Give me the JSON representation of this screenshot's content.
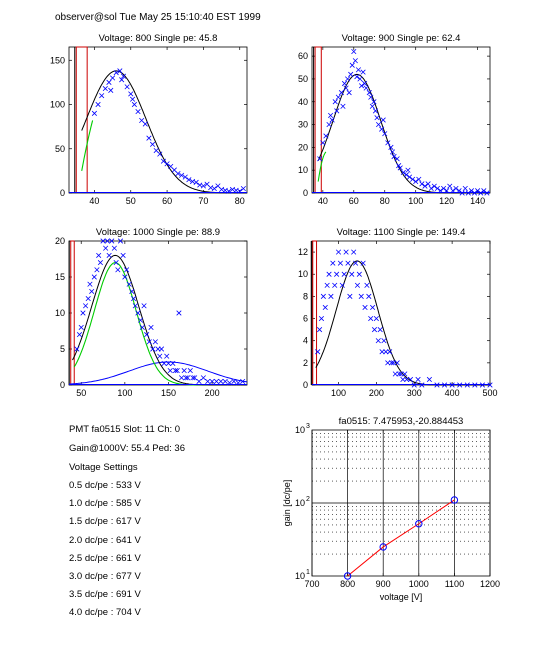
{
  "header": "observer@sol  Tue May 25 15:10:40 EST 1999",
  "info": {
    "line1": "PMT fa0515 Slot: 11 Ch: 0",
    "line2": "Gain@1000V: 55.4 Ped: 36",
    "heading": "Voltage Settings",
    "settings": [
      "0.5 dc/pe : 533 V",
      "1.0 dc/pe : 585 V",
      "1.5 dc/pe : 617 V",
      "2.0 dc/pe : 641 V",
      "2.5 dc/pe : 661 V",
      "3.0 dc/pe : 677 V",
      "3.5 dc/pe : 691 V",
      "4.0 dc/pe : 704 V"
    ]
  },
  "colors": {
    "data": "#0000ff",
    "fit": "#000000",
    "pedestal": "#cc0000",
    "component": "#00cc00",
    "gainLine": "#ff0000"
  },
  "chart_data": [
    {
      "type": "scatter",
      "title": "Voltage: 800 Single pe: 45.8",
      "xlim": [
        33,
        82
      ],
      "ylim": [
        0,
        165
      ],
      "xticks": [
        40,
        50,
        60,
        70,
        80
      ],
      "yticks": [
        0,
        50,
        100,
        150
      ],
      "pedestal": {
        "x1": 35,
        "x2": 38,
        "h": 165
      },
      "fit": {
        "mu": 46,
        "sigma": 8.2,
        "amp": 138,
        "x0": 36.5
      },
      "green": {
        "x0": 36.5,
        "x1": 39.5,
        "y0": 25,
        "y1": 82
      },
      "blue_points": [
        [
          40,
          90
        ],
        [
          41,
          100
        ],
        [
          42,
          110
        ],
        [
          43,
          118
        ],
        [
          44,
          125
        ],
        [
          44.5,
          116
        ],
        [
          45,
          130
        ],
        [
          46,
          136
        ],
        [
          47,
          138
        ],
        [
          47.5,
          128
        ],
        [
          48,
          132
        ],
        [
          49,
          120
        ],
        [
          50,
          112
        ],
        [
          50.5,
          106
        ],
        [
          51,
          100
        ],
        [
          52,
          92
        ],
        [
          53,
          82
        ],
        [
          54,
          78
        ],
        [
          55,
          62
        ],
        [
          56,
          55
        ],
        [
          57,
          48
        ],
        [
          58,
          44
        ],
        [
          59,
          36
        ],
        [
          60,
          33
        ],
        [
          61,
          30
        ],
        [
          62,
          26
        ],
        [
          63,
          22
        ],
        [
          64,
          20
        ],
        [
          65,
          18
        ],
        [
          66,
          15
        ],
        [
          67,
          13
        ],
        [
          68,
          12
        ],
        [
          69,
          9
        ],
        [
          70,
          8
        ],
        [
          71,
          10
        ],
        [
          72,
          6
        ],
        [
          73,
          5
        ],
        [
          74,
          8
        ],
        [
          75,
          4
        ],
        [
          76,
          3
        ],
        [
          77,
          2
        ],
        [
          78,
          4
        ],
        [
          79,
          3
        ],
        [
          80,
          2
        ],
        [
          81,
          5
        ]
      ]
    },
    {
      "type": "scatter",
      "title": "Voltage: 900 Single pe: 62.4",
      "xlim": [
        33,
        148
      ],
      "ylim": [
        0,
        64
      ],
      "xticks": [
        40,
        60,
        80,
        100,
        120,
        140
      ],
      "yticks": [
        0,
        10,
        20,
        30,
        40,
        50,
        60
      ],
      "pedestal": {
        "x1": 35,
        "x2": 39,
        "h": 64
      },
      "fit": {
        "mu": 62,
        "sigma": 15.5,
        "amp": 52,
        "x0": 37
      },
      "green": {
        "x0": 37,
        "x1": 42,
        "y0": 5,
        "y1": 18
      },
      "blue_points": [
        [
          38,
          15
        ],
        [
          40,
          22
        ],
        [
          42,
          25
        ],
        [
          44,
          30
        ],
        [
          45,
          34
        ],
        [
          46,
          32
        ],
        [
          48,
          40
        ],
        [
          49,
          36
        ],
        [
          50,
          42
        ],
        [
          52,
          44
        ],
        [
          53,
          38
        ],
        [
          54,
          48
        ],
        [
          55,
          46
        ],
        [
          56,
          50
        ],
        [
          57,
          44
        ],
        [
          58,
          52
        ],
        [
          59,
          56
        ],
        [
          60,
          62
        ],
        [
          61,
          58
        ],
        [
          62,
          51
        ],
        [
          63,
          54
        ],
        [
          64,
          50
        ],
        [
          65,
          47
        ],
        [
          66,
          53
        ],
        [
          67,
          48
        ],
        [
          68,
          46
        ],
        [
          70,
          44
        ],
        [
          71,
          42
        ],
        [
          72,
          38
        ],
        [
          73,
          40
        ],
        [
          74,
          36
        ],
        [
          75,
          33
        ],
        [
          76,
          30
        ],
        [
          78,
          28
        ],
        [
          79,
          32
        ],
        [
          80,
          26
        ],
        [
          82,
          22
        ],
        [
          84,
          20
        ],
        [
          85,
          18
        ],
        [
          86,
          16
        ],
        [
          88,
          15
        ],
        [
          89,
          12
        ],
        [
          90,
          11
        ],
        [
          92,
          9
        ],
        [
          94,
          8
        ],
        [
          95,
          10
        ],
        [
          96,
          7
        ],
        [
          98,
          6
        ],
        [
          100,
          5
        ],
        [
          102,
          6
        ],
        [
          104,
          4
        ],
        [
          106,
          3
        ],
        [
          108,
          4
        ],
        [
          110,
          2
        ],
        [
          112,
          3
        ],
        [
          114,
          2
        ],
        [
          116,
          1
        ],
        [
          118,
          2
        ],
        [
          120,
          1
        ],
        [
          122,
          3
        ],
        [
          124,
          1
        ],
        [
          126,
          2
        ],
        [
          128,
          1
        ],
        [
          130,
          0
        ],
        [
          132,
          2
        ],
        [
          134,
          0
        ],
        [
          136,
          1
        ],
        [
          138,
          0
        ],
        [
          140,
          1
        ],
        [
          142,
          0
        ],
        [
          144,
          1
        ],
        [
          146,
          0
        ]
      ]
    },
    {
      "type": "scatter",
      "title": "Voltage: 1000 Single pe: 88.9",
      "xlim": [
        36,
        240
      ],
      "ylim": [
        0,
        20
      ],
      "xticks": [
        50,
        100,
        150,
        200
      ],
      "yticks": [
        0,
        5,
        10,
        15,
        20
      ],
      "pedestal": {
        "x1": 38,
        "x2": 42,
        "h": 20
      },
      "fit": {
        "mu": 89,
        "sigma": 27,
        "amp": 18,
        "x0": 40
      },
      "green": {
        "mu": 89,
        "sigma": 24,
        "amp": 17
      },
      "blue_curve": {
        "mu": 150,
        "sigma": 45,
        "amp": 3.2
      },
      "blue_points": [
        [
          45,
          5
        ],
        [
          48,
          7
        ],
        [
          50,
          8
        ],
        [
          52,
          10
        ],
        [
          55,
          11
        ],
        [
          58,
          12
        ],
        [
          60,
          14
        ],
        [
          62,
          13
        ],
        [
          65,
          15
        ],
        [
          68,
          16
        ],
        [
          70,
          18
        ],
        [
          72,
          17
        ],
        [
          75,
          20
        ],
        [
          78,
          19
        ],
        [
          80,
          20
        ],
        [
          82,
          18
        ],
        [
          85,
          20
        ],
        [
          88,
          19
        ],
        [
          90,
          17
        ],
        [
          92,
          16
        ],
        [
          95,
          20
        ],
        [
          98,
          18
        ],
        [
          100,
          15
        ],
        [
          102,
          16
        ],
        [
          105,
          14
        ],
        [
          108,
          13
        ],
        [
          110,
          12
        ],
        [
          112,
          11
        ],
        [
          115,
          10
        ],
        [
          118,
          9
        ],
        [
          120,
          8
        ],
        [
          122,
          11
        ],
        [
          125,
          7
        ],
        [
          128,
          6
        ],
        [
          130,
          8
        ],
        [
          132,
          5
        ],
        [
          135,
          6
        ],
        [
          138,
          5
        ],
        [
          140,
          4
        ],
        [
          142,
          5
        ],
        [
          145,
          3
        ],
        [
          148,
          4
        ],
        [
          150,
          3
        ],
        [
          152,
          2
        ],
        [
          155,
          3
        ],
        [
          158,
          2
        ],
        [
          160,
          2
        ],
        [
          162,
          10
        ],
        [
          165,
          1
        ],
        [
          168,
          2
        ],
        [
          170,
          1
        ],
        [
          172,
          1
        ],
        [
          175,
          2
        ],
        [
          178,
          1
        ],
        [
          180,
          1
        ],
        [
          185,
          0.5
        ],
        [
          190,
          1
        ],
        [
          195,
          0.5
        ],
        [
          200,
          0.5
        ],
        [
          205,
          0.5
        ],
        [
          210,
          0.5
        ],
        [
          215,
          0.5
        ],
        [
          220,
          0.3
        ],
        [
          225,
          0.5
        ],
        [
          230,
          0.3
        ],
        [
          235,
          0.5
        ]
      ]
    },
    {
      "type": "scatter",
      "title": "Voltage: 1100 Single pe: 149.4",
      "xlim": [
        30,
        500
      ],
      "ylim": [
        0,
        13
      ],
      "xticks": [
        100,
        200,
        300,
        400,
        500
      ],
      "yticks": [
        0,
        2,
        4,
        6,
        8,
        10,
        12
      ],
      "pedestal": {
        "x1": 32,
        "x2": 42,
        "h": 13
      },
      "fit": {
        "mu": 149,
        "sigma": 55,
        "amp": 11.2,
        "x0": 40
      },
      "blue_points": [
        [
          45,
          3
        ],
        [
          50,
          5
        ],
        [
          55,
          6
        ],
        [
          60,
          8
        ],
        [
          65,
          7
        ],
        [
          70,
          9
        ],
        [
          75,
          10
        ],
        [
          80,
          8
        ],
        [
          85,
          11
        ],
        [
          90,
          9
        ],
        [
          95,
          10
        ],
        [
          100,
          12
        ],
        [
          105,
          11
        ],
        [
          110,
          9
        ],
        [
          115,
          10
        ],
        [
          120,
          12
        ],
        [
          125,
          11
        ],
        [
          130,
          8
        ],
        [
          135,
          10
        ],
        [
          140,
          12
        ],
        [
          145,
          11
        ],
        [
          150,
          9
        ],
        [
          155,
          10
        ],
        [
          160,
          8
        ],
        [
          165,
          11
        ],
        [
          170,
          7
        ],
        [
          175,
          9
        ],
        [
          180,
          8
        ],
        [
          185,
          6
        ],
        [
          190,
          7
        ],
        [
          195,
          5
        ],
        [
          200,
          6
        ],
        [
          205,
          4
        ],
        [
          210,
          5
        ],
        [
          215,
          3
        ],
        [
          220,
          4
        ],
        [
          225,
          3
        ],
        [
          230,
          2
        ],
        [
          235,
          3
        ],
        [
          240,
          2
        ],
        [
          245,
          2
        ],
        [
          250,
          1
        ],
        [
          255,
          2
        ],
        [
          260,
          1
        ],
        [
          265,
          1
        ],
        [
          270,
          0.5
        ],
        [
          275,
          1
        ],
        [
          280,
          0.5
        ],
        [
          290,
          0.5
        ],
        [
          300,
          0
        ],
        [
          310,
          0.5
        ],
        [
          320,
          0
        ],
        [
          340,
          0.5
        ],
        [
          360,
          0
        ],
        [
          380,
          0
        ],
        [
          400,
          0
        ],
        [
          420,
          0
        ],
        [
          440,
          0
        ],
        [
          460,
          0
        ],
        [
          480,
          0
        ],
        [
          500,
          0
        ]
      ]
    },
    {
      "type": "line",
      "title": "fa0515: 7.475953,-20.884453",
      "xlabel": "voltage [V]",
      "ylabel": "gain [dc/pe]",
      "xlim": [
        700,
        1200
      ],
      "ylim": [
        10,
        1000
      ],
      "yscale": "log",
      "xticks": [
        700,
        800,
        900,
        1000,
        1100,
        1200
      ],
      "yticks": [
        {
          "value": 10,
          "label": "10",
          "exp": "1"
        },
        {
          "value": 100,
          "label": "10",
          "exp": "2"
        },
        {
          "value": 1000,
          "label": "10",
          "exp": "3"
        }
      ],
      "grid": true,
      "x": [
        800,
        900,
        1000,
        1100
      ],
      "y": [
        10,
        25,
        52,
        110
      ]
    }
  ]
}
